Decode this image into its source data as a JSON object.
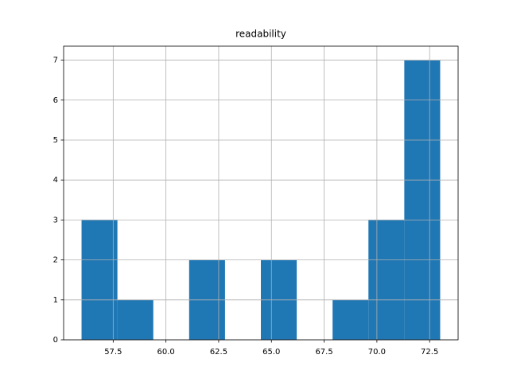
{
  "chart_data": {
    "type": "histogram",
    "title": "readability",
    "bins": [
      56.0,
      57.7,
      59.4,
      61.1,
      62.8,
      64.5,
      66.2,
      67.9,
      69.6,
      71.3,
      73.0
    ],
    "values": [
      3,
      1,
      0,
      2,
      0,
      2,
      0,
      1,
      3,
      7
    ],
    "color": "#1f77b4",
    "xlim": [
      55.15,
      73.85
    ],
    "xticks": [
      57.5,
      {
        "value": 60,
        "label": "60.0"
      },
      62.5,
      {
        "value": 65,
        "label": "65.0"
      },
      67.5,
      {
        "value": 70,
        "label": "70.0"
      },
      72.5
    ],
    "ylim": [
      0,
      7.35
    ],
    "yticks": [
      0,
      1,
      2,
      3,
      4,
      5,
      6,
      7
    ],
    "grid": true
  }
}
